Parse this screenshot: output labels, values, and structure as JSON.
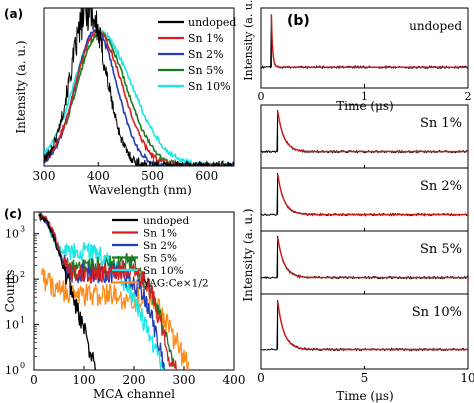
{
  "colors": {
    "undoped": "#000000",
    "sn1": "#d62020",
    "sn2": "#1f3fb5",
    "sn5": "#1e7a22",
    "sn10": "#19e6e6",
    "yag": "#ff8c1a",
    "decay": "#000000",
    "fit": "#cc1b1b"
  },
  "chart_data": [
    {
      "id": "a",
      "type": "line",
      "panel_label": "(a)",
      "xlabel": "Wavelength (nm)",
      "ylabel": "Intensity (a. u.)",
      "xlim": [
        300,
        650
      ],
      "ylim": [
        0,
        1.0
      ],
      "xticks": [
        300,
        400,
        500,
        600
      ],
      "legend_position": "top-right",
      "series": [
        {
          "name": "undoped",
          "color": "#000000",
          "center": 382,
          "width": 46,
          "skew": 0.0,
          "peak": 0.98,
          "noise": 0.16
        },
        {
          "name": "Sn 1%",
          "color": "#d62020",
          "center": 398,
          "width": 56,
          "skew": 0.15,
          "peak": 0.85,
          "noise": 0.03
        },
        {
          "name": "Sn 2%",
          "color": "#1f3fb5",
          "center": 395,
          "width": 52,
          "skew": 0.05,
          "peak": 0.86,
          "noise": 0.03
        },
        {
          "name": "Sn 5%",
          "color": "#1e7a22",
          "center": 402,
          "width": 58,
          "skew": 0.2,
          "peak": 0.84,
          "noise": 0.03
        },
        {
          "name": "Sn 10%",
          "color": "#19e6e6",
          "center": 400,
          "width": 64,
          "skew": 0.35,
          "peak": 0.85,
          "noise": 0.03
        }
      ]
    },
    {
      "id": "b",
      "type": "line",
      "panel_label": "(b)",
      "xlabel": "Time (μs)",
      "ylabel": "Intensity (a. u.)",
      "subpanels": [
        {
          "label": "undoped",
          "xlim": [
            0,
            2
          ],
          "xticks": [
            0,
            1,
            2
          ],
          "onset": 0.1,
          "tau": 0.012
        },
        {
          "label": "Sn 1%",
          "xlim": [
            0,
            10
          ],
          "onset": 0.8,
          "tau": 0.3
        },
        {
          "label": "Sn 2%",
          "xlim": [
            0,
            10
          ],
          "onset": 0.8,
          "tau": 0.3
        },
        {
          "label": "Sn 5%",
          "xlim": [
            0,
            10
          ],
          "onset": 0.8,
          "tau": 0.3
        },
        {
          "label": "Sn 10%",
          "xlim": [
            0,
            10
          ],
          "onset": 0.8,
          "tau": 0.3
        }
      ],
      "lower_xticks": [
        0,
        5,
        10
      ],
      "lower_xlim": [
        0,
        10
      ]
    },
    {
      "id": "c",
      "type": "line",
      "panel_label": "(c)",
      "xlabel": "MCA channel",
      "ylabel": "Counts",
      "xlim": [
        0,
        400
      ],
      "ylim_log": [
        1,
        3000
      ],
      "yscale": "log",
      "xticks": [
        0,
        100,
        200,
        300,
        400
      ],
      "yticks": [
        {
          "v": 1,
          "label": "10",
          "sup": "0"
        },
        {
          "v": 10,
          "label": "10",
          "sup": "1"
        },
        {
          "v": 100,
          "label": "10",
          "sup": "2"
        },
        {
          "v": 1000,
          "label": "10",
          "sup": "3"
        }
      ],
      "legend_position": "top-right",
      "series": [
        {
          "name": "undoped",
          "color": "#000000",
          "points": [
            [
              10,
              2500
            ],
            [
              25,
              1900
            ],
            [
              40,
              800
            ],
            [
              55,
              250
            ],
            [
              70,
              80
            ],
            [
              85,
              25
            ],
            [
              100,
              8
            ],
            [
              112,
              2.5
            ],
            [
              125,
              1
            ]
          ]
        },
        {
          "name": "Sn 1%",
          "color": "#d62020",
          "points": [
            [
              10,
              2600
            ],
            [
              25,
              2000
            ],
            [
              40,
              1000
            ],
            [
              55,
              300
            ],
            [
              70,
              140
            ],
            [
              90,
              120
            ],
            [
              110,
              125
            ],
            [
              140,
              140
            ],
            [
              170,
              150
            ],
            [
              200,
              150
            ],
            [
              220,
              100
            ],
            [
              240,
              35
            ],
            [
              255,
              8
            ],
            [
              270,
              2
            ],
            [
              285,
              1
            ]
          ]
        },
        {
          "name": "Sn 2%",
          "color": "#1f3fb5",
          "points": [
            [
              10,
              2500
            ],
            [
              25,
              1950
            ],
            [
              40,
              900
            ],
            [
              55,
              280
            ],
            [
              70,
              140
            ],
            [
              90,
              130
            ],
            [
              120,
              140
            ],
            [
              150,
              135
            ],
            [
              175,
              120
            ],
            [
              195,
              90
            ],
            [
              215,
              50
            ],
            [
              235,
              15
            ],
            [
              250,
              4
            ],
            [
              262,
              1
            ]
          ]
        },
        {
          "name": "Sn 5%",
          "color": "#1e7a22",
          "points": [
            [
              10,
              2550
            ],
            [
              25,
              1950
            ],
            [
              40,
              950
            ],
            [
              55,
              300
            ],
            [
              70,
              160
            ],
            [
              100,
              170
            ],
            [
              130,
              190
            ],
            [
              160,
              210
            ],
            [
              185,
              230
            ],
            [
              205,
              190
            ],
            [
              225,
              90
            ],
            [
              245,
              25
            ],
            [
              262,
              6
            ],
            [
              280,
              1.5
            ]
          ]
        },
        {
          "name": "Sn 10%",
          "color": "#19e6e6",
          "points": [
            [
              10,
              2400
            ],
            [
              25,
              1850
            ],
            [
              40,
              700
            ],
            [
              55,
              420
            ],
            [
              70,
              400
            ],
            [
              90,
              400
            ],
            [
              110,
              380
            ],
            [
              130,
              330
            ],
            [
              150,
              250
            ],
            [
              170,
              130
            ],
            [
              190,
              60
            ],
            [
              210,
              20
            ],
            [
              230,
              6
            ],
            [
              250,
              2
            ],
            [
              262,
              1
            ]
          ]
        },
        {
          "name": "YAG:Ce×1/2",
          "color": "#ff8c1a",
          "points": [
            [
              15,
              110
            ],
            [
              40,
              70
            ],
            [
              70,
              50
            ],
            [
              100,
              45
            ],
            [
              130,
              45
            ],
            [
              160,
              42
            ],
            [
              190,
              38
            ],
            [
              220,
              35
            ],
            [
              250,
              20
            ],
            [
              270,
              8
            ],
            [
              290,
              3
            ],
            [
              310,
              1
            ]
          ]
        }
      ]
    }
  ]
}
